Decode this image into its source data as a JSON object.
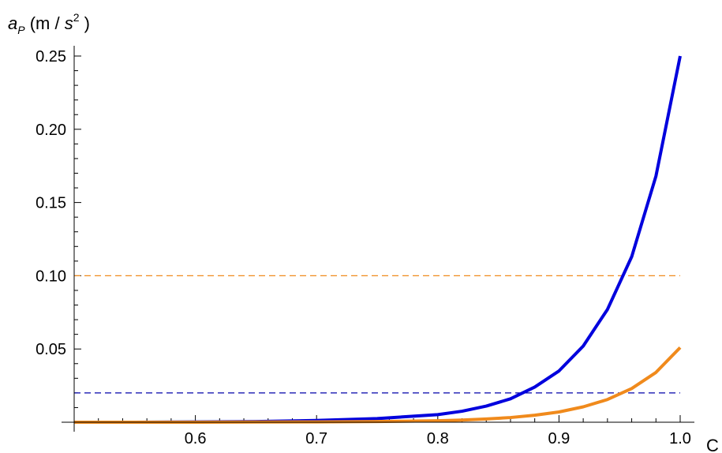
{
  "chart_data": {
    "type": "line",
    "title": "",
    "ylabel": {
      "symbol": "a",
      "subscript": "P",
      "unit_open": " (m / ",
      "unit_s": "s",
      "unit_exp": "2",
      "unit_close": " )"
    },
    "xlabel": "C",
    "xlim": [
      0.5,
      1.0
    ],
    "ylim": [
      0,
      0.25
    ],
    "x_ticks": [
      {
        "value": 0.6,
        "label": "0.6"
      },
      {
        "value": 0.7,
        "label": "0.7"
      },
      {
        "value": 0.8,
        "label": "0.8"
      },
      {
        "value": 0.9,
        "label": "0.9"
      },
      {
        "value": 1.0,
        "label": "1.0"
      }
    ],
    "y_ticks": [
      {
        "value": 0.05,
        "label": "0.05"
      },
      {
        "value": 0.1,
        "label": "0.10"
      },
      {
        "value": 0.15,
        "label": "0.15"
      },
      {
        "value": 0.2,
        "label": "0.20"
      },
      {
        "value": 0.25,
        "label": "0.25"
      }
    ],
    "series": [
      {
        "color": "#0000dd",
        "style": "solid",
        "x": [
          0.5,
          0.55,
          0.6,
          0.65,
          0.7,
          0.75,
          0.8,
          0.82,
          0.84,
          0.86,
          0.88,
          0.9,
          0.92,
          0.94,
          0.96,
          0.98,
          1.0
        ],
        "y": [
          0.0,
          0.0,
          0.0002,
          0.0005,
          0.0012,
          0.0025,
          0.0052,
          0.0075,
          0.011,
          0.016,
          0.024,
          0.035,
          0.052,
          0.077,
          0.113,
          0.168,
          0.25
        ]
      },
      {
        "color": "#f08a1c",
        "style": "solid",
        "x": [
          0.5,
          0.55,
          0.6,
          0.65,
          0.7,
          0.75,
          0.8,
          0.82,
          0.84,
          0.86,
          0.88,
          0.9,
          0.92,
          0.94,
          0.96,
          0.98,
          1.0
        ],
        "y": [
          0.0,
          0.0,
          0.0,
          0.0001,
          0.0002,
          0.0005,
          0.001,
          0.0015,
          0.0022,
          0.0032,
          0.0048,
          0.007,
          0.0105,
          0.0155,
          0.023,
          0.034,
          0.051
        ]
      },
      {
        "color": "#f08a1c",
        "style": "dashed",
        "x": [
          0.5,
          1.0
        ],
        "y": [
          0.1,
          0.1
        ]
      },
      {
        "color": "#0000aa",
        "style": "dashed",
        "x": [
          0.5,
          1.0
        ],
        "y": [
          0.02,
          0.02
        ]
      }
    ]
  }
}
